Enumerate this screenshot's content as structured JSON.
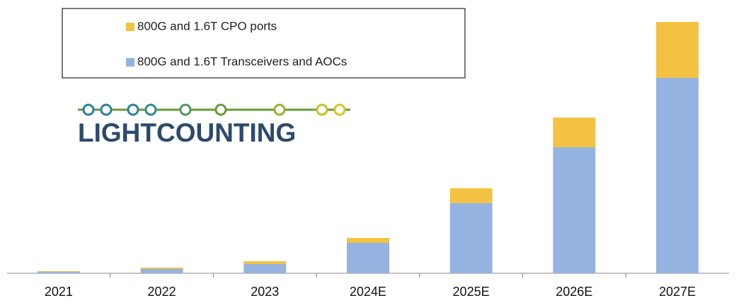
{
  "chart_data": {
    "type": "stacked_bar",
    "logo": "LIGHTCOUNTING",
    "categories": [
      "2021",
      "2022",
      "2023",
      "2024E",
      "2025E",
      "2026E",
      "2027E"
    ],
    "series": [
      {
        "name": "800G and 1.6T Transceivers and AOCs",
        "color": "#95b3e0",
        "values": [
          2,
          6,
          13,
          43,
          99,
          178,
          276
        ]
      },
      {
        "name": "800G and 1.6T CPO ports",
        "color": "#f4c242",
        "values": [
          1,
          2,
          4,
          7,
          21,
          42,
          79
        ]
      }
    ],
    "ylim": [
      0,
      360
    ],
    "legend": "top-left"
  }
}
